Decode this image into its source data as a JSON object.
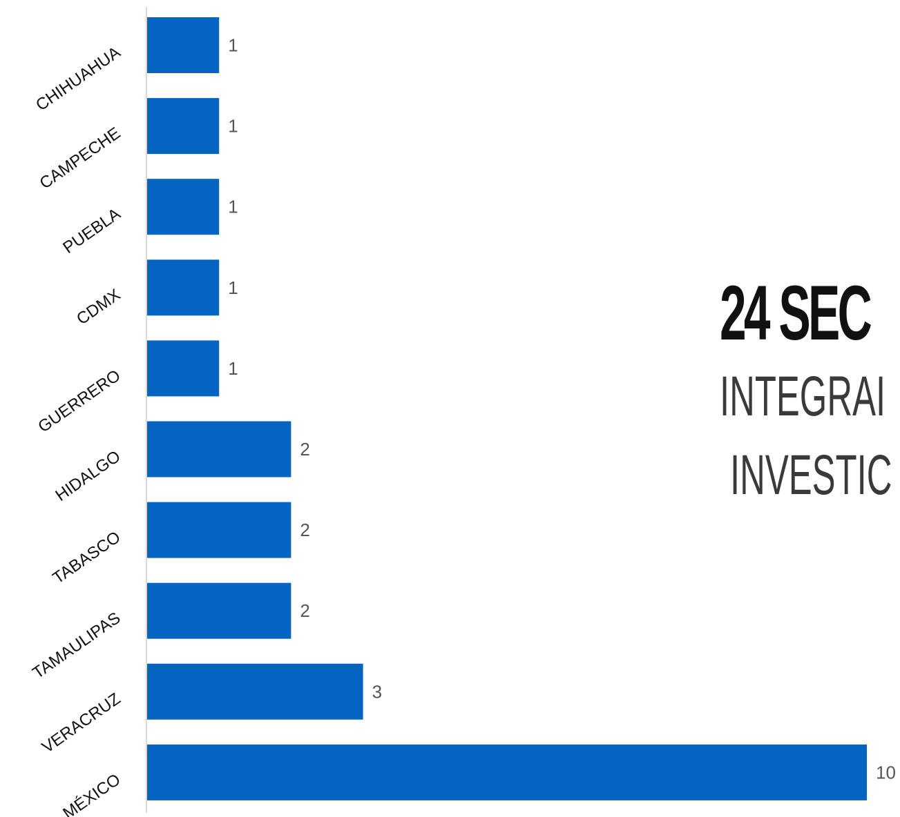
{
  "chart_data": {
    "type": "bar",
    "orientation": "horizontal",
    "categories": [
      "CHIHUAHUA",
      "CAMPECHE",
      "PUEBLA",
      "CDMX",
      "GUERRERO",
      "HIDALGO",
      "TABASCO",
      "TAMAULIPAS",
      "VERACRUZ",
      "MÉXICO"
    ],
    "values": [
      1,
      1,
      1,
      1,
      1,
      2,
      2,
      2,
      3,
      10
    ],
    "data_labels": [
      "1",
      "1",
      "1",
      "1",
      "1",
      "2",
      "2",
      "2",
      "3",
      "10"
    ],
    "xlim": [
      0,
      10
    ],
    "grid": false,
    "bar_color": "#0563c1"
  },
  "side_text": {
    "line1": "24 SEC",
    "line2": "INTEGRAI",
    "line3": "INVESTIC"
  }
}
